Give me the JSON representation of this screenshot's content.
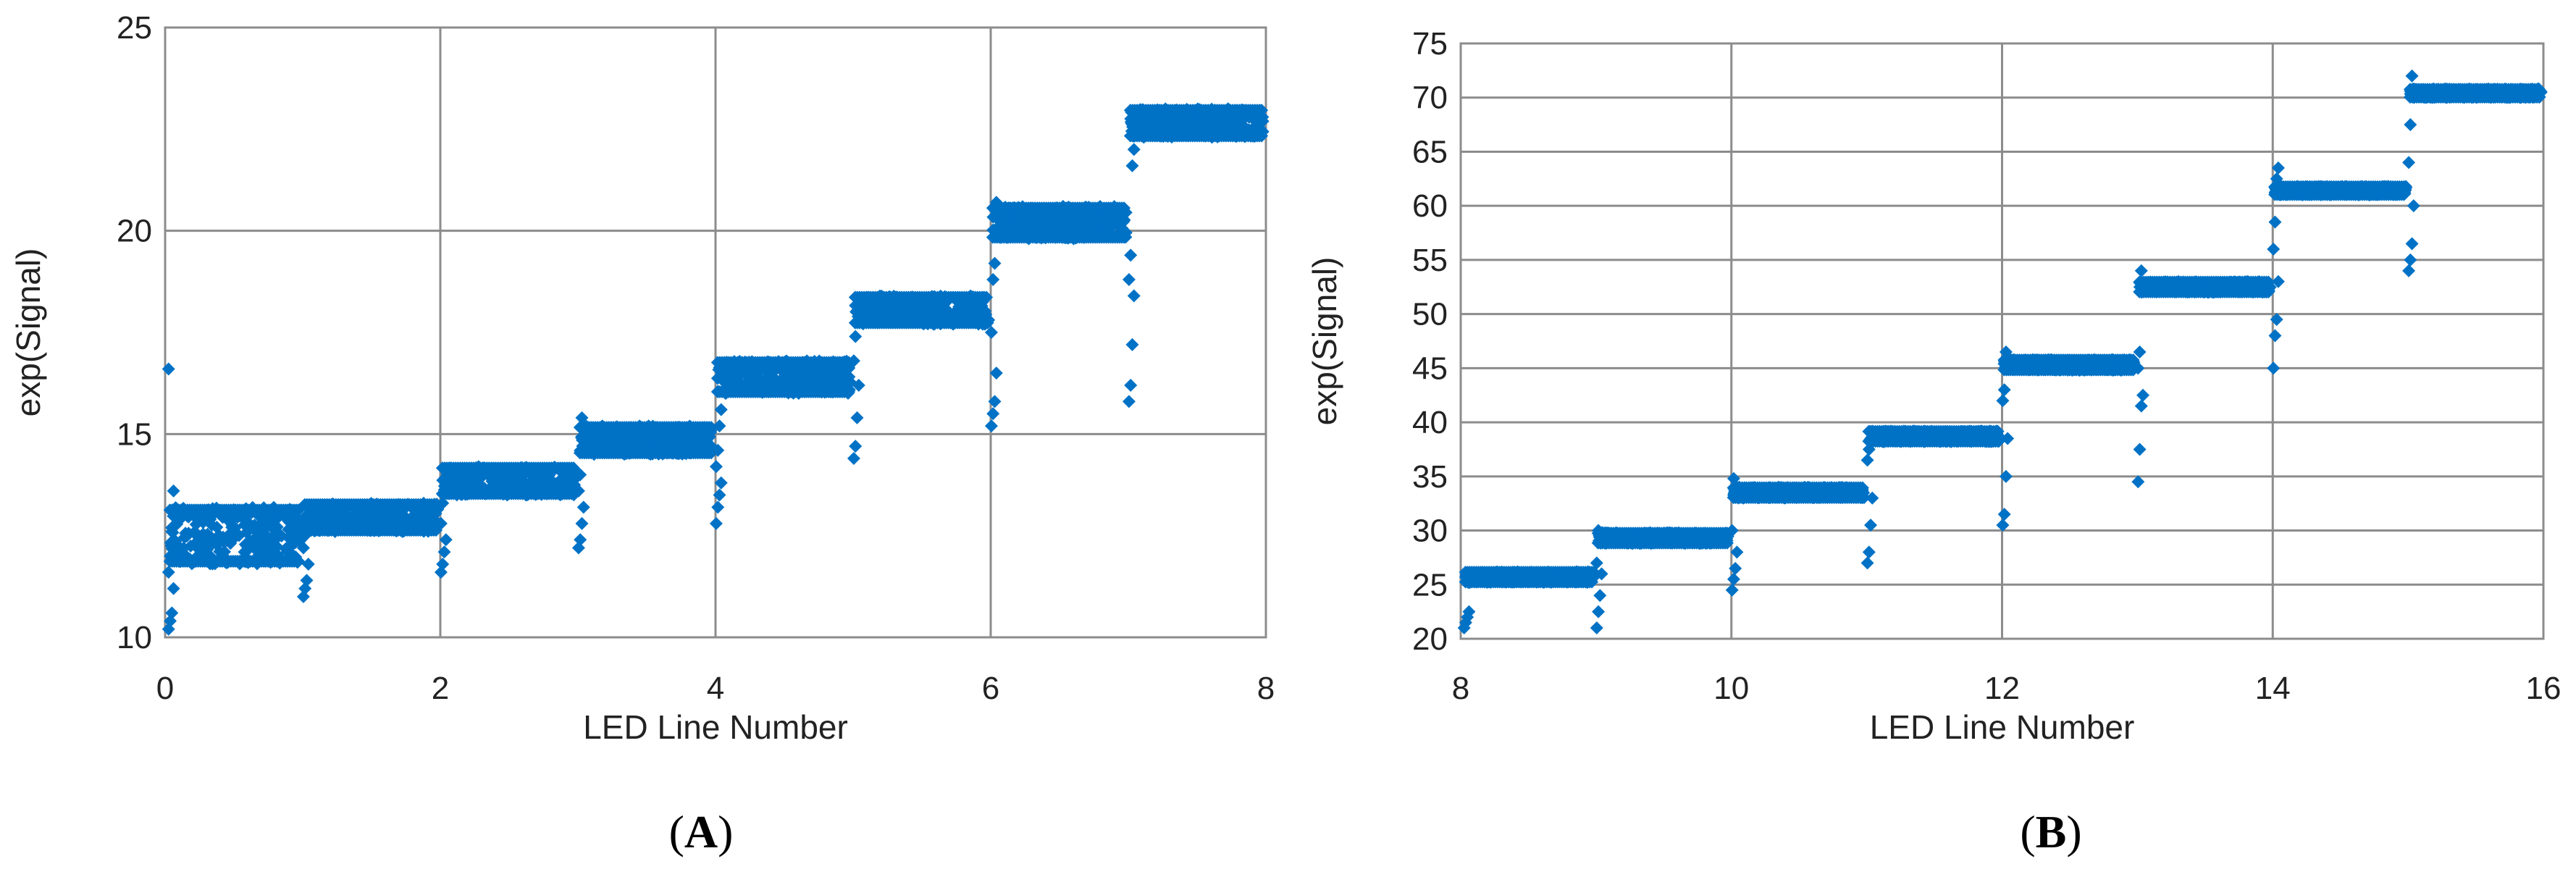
{
  "colors": {
    "series": "#0072C6",
    "grid": "#8c8c8c",
    "frame": "#8c8c8c",
    "background": "#ffffff"
  },
  "chart_data": [
    {
      "id": "A",
      "type": "scatter",
      "panel_label": {
        "open": "(",
        "letter": "A",
        "close": ")"
      },
      "xlabel": "LED Line Number",
      "ylabel": "exp(Signal)",
      "xlim": [
        0,
        8
      ],
      "ylim": [
        10,
        25
      ],
      "xticks": [
        0,
        2,
        4,
        6,
        8
      ],
      "yticks": [
        10,
        15,
        20,
        25
      ],
      "grid": true,
      "marker": "diamond",
      "steps": [
        {
          "x_start": 0.02,
          "x_end": 1.0,
          "low": 11.8,
          "high": 13.2,
          "edge": [
            10.2,
            10.4,
            10.6,
            11.2,
            11.6,
            12.0,
            12.6,
            13.6,
            16.6
          ]
        },
        {
          "x_start": 1.0,
          "x_end": 2.0,
          "low": 12.6,
          "high": 13.3,
          "edge": [
            11.0,
            11.2,
            11.4,
            11.8,
            12.2,
            12.5,
            12.8
          ]
        },
        {
          "x_start": 2.0,
          "x_end": 3.0,
          "low": 13.5,
          "high": 14.2,
          "edge": [
            11.6,
            11.8,
            12.1,
            12.4,
            12.8,
            13.3
          ]
        },
        {
          "x_start": 3.0,
          "x_end": 4.0,
          "low": 14.5,
          "high": 15.2,
          "edge": [
            12.2,
            12.4,
            12.8,
            13.2,
            13.6,
            14.0,
            15.4
          ]
        },
        {
          "x_start": 4.0,
          "x_end": 5.0,
          "low": 16.0,
          "high": 16.8,
          "edge": [
            12.8,
            13.2,
            13.5,
            13.8,
            14.2,
            14.6,
            15.2,
            15.6
          ]
        },
        {
          "x_start": 5.0,
          "x_end": 6.0,
          "low": 17.7,
          "high": 18.4,
          "edge": [
            14.4,
            14.7,
            15.4,
            16.2,
            16.8,
            17.4
          ]
        },
        {
          "x_start": 6.0,
          "x_end": 7.0,
          "low": 19.8,
          "high": 20.6,
          "edge": [
            15.2,
            15.5,
            15.8,
            16.5,
            17.5,
            18.8,
            19.2,
            20.7
          ]
        },
        {
          "x_start": 7.0,
          "x_end": 8.0,
          "low": 22.3,
          "high": 23.0,
          "edge": [
            15.8,
            16.2,
            17.2,
            18.4,
            18.8,
            19.4,
            21.6,
            22.0
          ]
        }
      ]
    },
    {
      "id": "B",
      "type": "scatter",
      "panel_label": {
        "open": "(",
        "letter": "B",
        "close": ")"
      },
      "xlabel": "LED Line Number",
      "ylabel": "exp(Signal)",
      "xlim": [
        8,
        16
      ],
      "ylim": [
        20,
        75
      ],
      "xticks": [
        8,
        10,
        12,
        14,
        16
      ],
      "yticks": [
        20,
        25,
        30,
        35,
        40,
        45,
        50,
        55,
        60,
        65,
        70,
        75
      ],
      "grid": true,
      "marker": "diamond",
      "steps": [
        {
          "x_start": 8.02,
          "x_end": 9.0,
          "low": 25.2,
          "high": 26.2,
          "edge": [
            21.0,
            21.5,
            22.0,
            22.5
          ]
        },
        {
          "x_start": 9.0,
          "x_end": 10.0,
          "low": 28.8,
          "high": 29.8,
          "edge": [
            21.0,
            22.5,
            24.0,
            26.0,
            27.0,
            30.0
          ]
        },
        {
          "x_start": 10.0,
          "x_end": 11.0,
          "low": 33.0,
          "high": 34.0,
          "edge": [
            24.5,
            25.5,
            26.5,
            28.0,
            30.0,
            34.8
          ]
        },
        {
          "x_start": 11.0,
          "x_end": 12.0,
          "low": 38.2,
          "high": 39.2,
          "edge": [
            27.0,
            28.0,
            30.5,
            33.0,
            36.5,
            37.5
          ]
        },
        {
          "x_start": 12.0,
          "x_end": 13.0,
          "low": 44.8,
          "high": 45.8,
          "edge": [
            30.5,
            31.5,
            35.0,
            38.5,
            42.0,
            43.0,
            46.5
          ]
        },
        {
          "x_start": 13.0,
          "x_end": 14.0,
          "low": 52.0,
          "high": 53.0,
          "edge": [
            34.5,
            37.5,
            41.5,
            42.5,
            45.0,
            46.5,
            54.0
          ]
        },
        {
          "x_start": 14.0,
          "x_end": 15.0,
          "low": 61.0,
          "high": 61.8,
          "edge": [
            45.0,
            48.0,
            49.5,
            53.0,
            56.0,
            58.5,
            62.5,
            63.5
          ]
        },
        {
          "x_start": 15.0,
          "x_end": 16.0,
          "low": 70.0,
          "high": 70.8,
          "edge": [
            54.0,
            55.0,
            56.5,
            60.0,
            64.0,
            67.5,
            72.0
          ]
        }
      ]
    }
  ]
}
